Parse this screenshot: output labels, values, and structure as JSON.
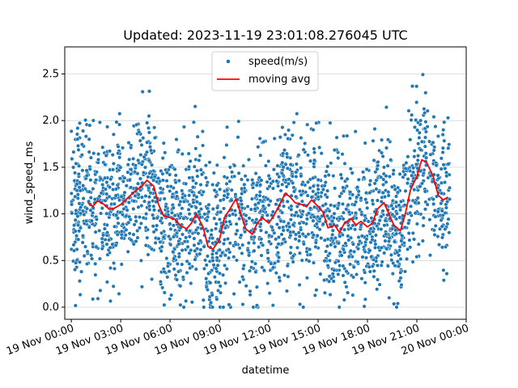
{
  "chart_data": {
    "type": "scatter",
    "title": "Updated: 2023-11-19 23:01:08.276045 UTC",
    "xlabel": "datetime",
    "ylabel": "wind_speed_ms",
    "xlim_hours": [
      -0.4,
      24.0
    ],
    "ylim": [
      -0.13,
      2.79
    ],
    "grid": "y-only",
    "legend_placement": "upper-center",
    "x_ticks": [
      {
        "hour": 0,
        "label": "19 Nov 00:00"
      },
      {
        "hour": 3,
        "label": "19 Nov 03:00"
      },
      {
        "hour": 6,
        "label": "19 Nov 06:00"
      },
      {
        "hour": 9,
        "label": "19 Nov 09:00"
      },
      {
        "hour": 12,
        "label": "19 Nov 12:00"
      },
      {
        "hour": 15,
        "label": "19 Nov 15:00"
      },
      {
        "hour": 18,
        "label": "19 Nov 18:00"
      },
      {
        "hour": 21,
        "label": "19 Nov 21:00"
      },
      {
        "hour": 24,
        "label": "20 Nov 00:00"
      }
    ],
    "y_ticks": [
      {
        "value": 0.0,
        "label": "0.0"
      },
      {
        "value": 0.5,
        "label": "0.5"
      },
      {
        "value": 1.0,
        "label": "1.0"
      },
      {
        "value": 1.5,
        "label": "1.5"
      },
      {
        "value": 2.0,
        "label": "2.0"
      },
      {
        "value": 2.5,
        "label": "2.5"
      }
    ],
    "series": [
      {
        "name": "speed(m/s)",
        "kind": "scatter",
        "color": "#1f77b4",
        "x_range_hours": [
          0.0,
          23.0
        ],
        "typical_spread": 0.45,
        "approx_point_count": 2300
      },
      {
        "name": "moving avg",
        "kind": "line",
        "color": "#ff0000",
        "x": [
          1.0,
          1.3,
          1.6,
          2.0,
          2.3,
          2.6,
          3.0,
          3.3,
          3.6,
          4.0,
          4.3,
          4.6,
          5.0,
          5.3,
          5.6,
          6.0,
          6.3,
          6.6,
          7.0,
          7.3,
          7.6,
          8.0,
          8.3,
          8.6,
          9.0,
          9.3,
          9.6,
          10.0,
          10.3,
          10.6,
          11.0,
          11.3,
          11.6,
          12.0,
          12.3,
          12.6,
          13.0,
          13.3,
          13.6,
          14.0,
          14.3,
          14.6,
          15.0,
          15.3,
          15.6,
          16.0,
          16.3,
          16.6,
          17.0,
          17.3,
          17.6,
          18.0,
          18.3,
          18.6,
          19.0,
          19.3,
          19.6,
          20.0,
          20.3,
          20.6,
          21.0,
          21.3,
          21.6,
          22.0,
          22.3,
          22.6,
          22.9
        ],
        "y": [
          1.12,
          1.08,
          1.14,
          1.1,
          1.05,
          1.06,
          1.1,
          1.15,
          1.2,
          1.26,
          1.3,
          1.36,
          1.3,
          1.1,
          0.98,
          0.96,
          0.94,
          0.88,
          0.84,
          0.9,
          1.0,
          0.86,
          0.65,
          0.62,
          0.72,
          0.96,
          1.04,
          1.16,
          1.0,
          0.84,
          0.78,
          0.9,
          0.96,
          0.9,
          0.98,
          1.08,
          1.22,
          1.18,
          1.12,
          1.1,
          1.08,
          1.15,
          1.08,
          1.02,
          0.85,
          0.88,
          0.8,
          0.9,
          0.95,
          0.88,
          0.92,
          0.86,
          0.9,
          1.05,
          1.12,
          1.0,
          0.88,
          0.82,
          1.0,
          1.25,
          1.4,
          1.58,
          1.55,
          1.4,
          1.2,
          1.15,
          1.18
        ]
      }
    ]
  }
}
